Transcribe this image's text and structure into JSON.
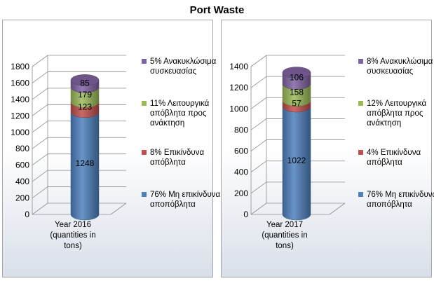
{
  "title": "Port Waste",
  "colors": {
    "hazardous": "#c0504d",
    "recoverable": "#9bbb59",
    "packaging": "#8064a2",
    "nonhazardous": "#4f81bd"
  },
  "chart_data": [
    {
      "type": "bar",
      "stacked": true,
      "style": "3d-cylinder",
      "categories": [
        "Year 2016 (quantities in tons)"
      ],
      "category_label": "Year 2016\n(quantities in\ntons)",
      "ylim": [
        0,
        1800
      ],
      "yticks": [
        "0",
        "200",
        "400",
        "600",
        "800",
        "1000",
        "1200",
        "1400",
        "1600",
        "1800"
      ],
      "grid": true,
      "legend": "right",
      "series": [
        {
          "name": "76% Μη επικίνδυνα αποπόβλητα",
          "key": "nonhazardous",
          "values": [
            1248
          ],
          "label": "1248"
        },
        {
          "name": "8% Επικίνδυνα απόβλητα",
          "key": "hazardous",
          "values": [
            123
          ],
          "label": "123"
        },
        {
          "name": "11% Λειτουργικά απόβλητα προς ανάκτηση",
          "key": "recoverable",
          "values": [
            179
          ],
          "label": "179"
        },
        {
          "name": "5% Ανακυκλώσιμα συσκευασίας",
          "key": "packaging",
          "values": [
            85
          ],
          "label": "85"
        }
      ]
    },
    {
      "type": "bar",
      "stacked": true,
      "style": "3d-cylinder",
      "categories": [
        "Year 2017 (quantities in tons)"
      ],
      "category_label": "Year 2017\n(quantities in\ntons)",
      "ylim": [
        0,
        1400
      ],
      "yticks": [
        "0",
        "200",
        "400",
        "600",
        "800",
        "1000",
        "1200",
        "1400"
      ],
      "grid": true,
      "legend": "right",
      "series": [
        {
          "name": "76% Μη επικίνδυνα αποπόβλητα",
          "key": "nonhazardous",
          "values": [
            1022
          ],
          "label": "1022"
        },
        {
          "name": "4% Επικίνδυνα απόβλητα",
          "key": "hazardous",
          "values": [
            57
          ],
          "label": "57"
        },
        {
          "name": "12% Λειτουργικά απόβλητα προς ανάκτηση",
          "key": "recoverable",
          "values": [
            158
          ],
          "label": "158"
        },
        {
          "name": "8% Ανακυκλώσιμα συσκευασίας",
          "key": "packaging",
          "values": [
            106
          ],
          "label": "106"
        }
      ]
    }
  ],
  "legends": [
    {
      "items": [
        {
          "key": "packaging",
          "label": "5% Ανακυκλώσιμα συσκευασίας"
        },
        {
          "key": "recoverable",
          "label": "11% Λειτουργικά απόβλητα προς ανάκτηση"
        },
        {
          "key": "hazardous",
          "label": "8% Επικίνδυνα απόβλητα"
        },
        {
          "key": "nonhazardous",
          "label": "76% Μη επικίνδυνα αποπόβλητα"
        }
      ]
    },
    {
      "items": [
        {
          "key": "packaging",
          "label": "8% Ανακυκλώσιμα συσκευασίας"
        },
        {
          "key": "recoverable",
          "label": "12% Λειτουργικά απόβλητα προς ανάκτηση"
        },
        {
          "key": "hazardous",
          "label": "4% Επικίνδυνα απόβλητα"
        },
        {
          "key": "nonhazardous",
          "label": "76% Μη επικίνδυνα αποπόβλητα"
        }
      ]
    }
  ]
}
